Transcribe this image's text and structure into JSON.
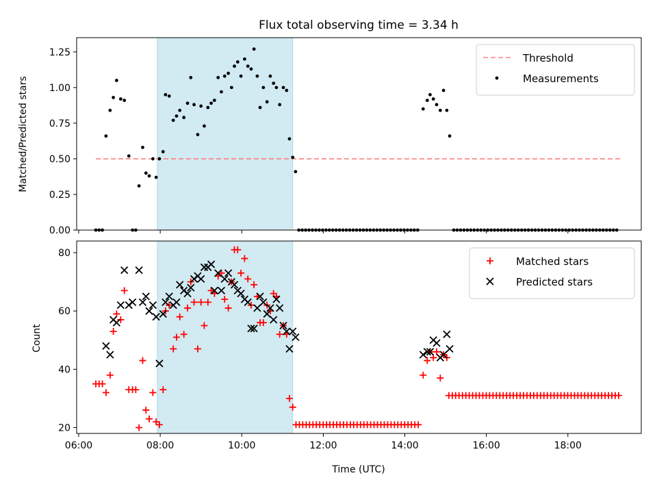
{
  "chart_data": {
    "title": "Flux total observing time = 3.34 h",
    "xlabel": "Time (UTC)",
    "x_ticks": [
      "06:00",
      "08:00",
      "10:00",
      "12:00",
      "14:00",
      "16:00",
      "18:00"
    ],
    "highlight_span_hours": [
      7.93,
      11.25
    ],
    "highlight_color": "#add8e6",
    "panels": [
      {
        "type": "scatter",
        "ylabel": "Matched/Predicted stars",
        "ylim": [
          0,
          1.35
        ],
        "y_ticks": [
          "0.00",
          "0.25",
          "0.50",
          "0.75",
          "1.00",
          "1.25"
        ],
        "y_tick_values": [
          0,
          0.25,
          0.5,
          0.75,
          1.0,
          1.25
        ],
        "legend_position": "top-right",
        "threshold": {
          "name": "Threshold",
          "value": 0.5,
          "x_range_hours": [
            6.42,
            19.28
          ],
          "color": "#ff7f7f"
        },
        "series": [
          {
            "name": "Measurements",
            "marker": "dot",
            "color": "#000000",
            "points": [
              [
                6.42,
                0
              ],
              [
                6.5,
                0
              ],
              [
                6.58,
                0
              ],
              [
                6.67,
                0.66
              ],
              [
                6.77,
                0.84
              ],
              [
                6.85,
                0.93
              ],
              [
                6.93,
                1.05
              ],
              [
                7.03,
                0.92
              ],
              [
                7.12,
                0.91
              ],
              [
                7.23,
                0.52
              ],
              [
                7.32,
                0
              ],
              [
                7.4,
                0
              ],
              [
                7.48,
                0.31
              ],
              [
                7.57,
                0.58
              ],
              [
                7.65,
                0.4
              ],
              [
                7.73,
                0.38
              ],
              [
                7.82,
                0.5
              ],
              [
                7.9,
                0.37
              ],
              [
                7.98,
                0.5
              ],
              [
                8.07,
                0.55
              ],
              [
                8.13,
                0.95
              ],
              [
                8.22,
                0.94
              ],
              [
                8.32,
                0.77
              ],
              [
                8.4,
                0.8
              ],
              [
                8.48,
                0.84
              ],
              [
                8.58,
                0.79
              ],
              [
                8.67,
                0.89
              ],
              [
                8.75,
                1.07
              ],
              [
                8.83,
                0.88
              ],
              [
                8.92,
                0.67
              ],
              [
                9.0,
                0.87
              ],
              [
                9.08,
                0.73
              ],
              [
                9.17,
                0.86
              ],
              [
                9.25,
                0.89
              ],
              [
                9.33,
                0.91
              ],
              [
                9.42,
                1.07
              ],
              [
                9.5,
                0.97
              ],
              [
                9.58,
                1.08
              ],
              [
                9.67,
                1.1
              ],
              [
                9.75,
                1.0
              ],
              [
                9.82,
                1.15
              ],
              [
                9.9,
                1.18
              ],
              [
                9.98,
                1.08
              ],
              [
                10.07,
                1.2
              ],
              [
                10.15,
                1.15
              ],
              [
                10.23,
                1.13
              ],
              [
                10.3,
                1.27
              ],
              [
                10.38,
                1.08
              ],
              [
                10.45,
                0.86
              ],
              [
                10.53,
                1.0
              ],
              [
                10.62,
                0.9
              ],
              [
                10.7,
                1.08
              ],
              [
                10.78,
                1.03
              ],
              [
                10.85,
                1.0
              ],
              [
                10.93,
                0.88
              ],
              [
                11.02,
                1.0
              ],
              [
                11.1,
                0.98
              ],
              [
                11.17,
                0.64
              ],
              [
                11.25,
                0.51
              ],
              [
                11.32,
                0.41
              ],
              [
                14.45,
                0.85
              ],
              [
                14.55,
                0.91
              ],
              [
                14.62,
                0.95
              ],
              [
                14.7,
                0.92
              ],
              [
                14.78,
                0.88
              ],
              [
                14.87,
                0.84
              ],
              [
                14.95,
                0.98
              ],
              [
                15.03,
                0.84
              ],
              [
                15.1,
                0.66
              ]
            ],
            "zero_runs": [
              {
                "x_start": 11.4,
                "x_end": 14.38,
                "step": 0.0833,
                "y": 0
              },
              {
                "x_start": 15.2,
                "x_end": 19.28,
                "step": 0.0833,
                "y": 0
              }
            ]
          }
        ]
      },
      {
        "type": "scatter",
        "ylabel": "Count",
        "ylim": [
          18,
          84
        ],
        "y_ticks": [
          "20",
          "40",
          "60",
          "80"
        ],
        "y_tick_values": [
          20,
          40,
          60,
          80
        ],
        "legend_position": "top-right",
        "series": [
          {
            "name": "Matched stars",
            "marker": "plus",
            "color": "#ff0000",
            "points": [
              [
                6.42,
                35
              ],
              [
                6.5,
                35
              ],
              [
                6.58,
                35
              ],
              [
                6.67,
                32
              ],
              [
                6.77,
                38
              ],
              [
                6.85,
                53
              ],
              [
                6.93,
                59
              ],
              [
                7.03,
                57
              ],
              [
                7.12,
                67
              ],
              [
                7.23,
                33
              ],
              [
                7.32,
                33
              ],
              [
                7.4,
                33
              ],
              [
                7.48,
                20
              ],
              [
                7.57,
                43
              ],
              [
                7.65,
                26
              ],
              [
                7.73,
                23
              ],
              [
                7.82,
                32
              ],
              [
                7.9,
                22
              ],
              [
                7.98,
                21
              ],
              [
                8.07,
                33
              ],
              [
                8.13,
                60
              ],
              [
                8.22,
                62
              ],
              [
                8.32,
                47
              ],
              [
                8.4,
                51
              ],
              [
                8.48,
                58
              ],
              [
                8.58,
                52
              ],
              [
                8.67,
                61
              ],
              [
                8.75,
                70
              ],
              [
                8.83,
                63
              ],
              [
                8.92,
                47
              ],
              [
                9.0,
                63
              ],
              [
                9.08,
                55
              ],
              [
                9.17,
                63
              ],
              [
                9.25,
                67
              ],
              [
                9.33,
                66
              ],
              [
                9.42,
                72
              ],
              [
                9.5,
                73
              ],
              [
                9.58,
                64
              ],
              [
                9.67,
                61
              ],
              [
                9.75,
                70
              ],
              [
                9.82,
                81
              ],
              [
                9.9,
                81
              ],
              [
                9.98,
                73
              ],
              [
                10.07,
                78
              ],
              [
                10.15,
                71
              ],
              [
                10.23,
                62
              ],
              [
                10.3,
                69
              ],
              [
                10.38,
                65
              ],
              [
                10.45,
                56
              ],
              [
                10.53,
                56
              ],
              [
                10.62,
                62
              ],
              [
                10.7,
                60
              ],
              [
                10.78,
                66
              ],
              [
                10.85,
                65
              ],
              [
                10.93,
                52
              ],
              [
                11.02,
                55
              ],
              [
                11.1,
                52
              ],
              [
                11.17,
                30
              ],
              [
                11.25,
                27
              ],
              [
                14.45,
                38
              ],
              [
                14.55,
                43
              ],
              [
                14.62,
                46
              ],
              [
                14.7,
                44
              ],
              [
                14.78,
                46
              ],
              [
                14.87,
                37
              ],
              [
                14.95,
                45
              ],
              [
                15.03,
                44
              ]
            ],
            "runs": [
              {
                "x_start": 11.33,
                "x_end": 14.38,
                "step": 0.0833,
                "y": 21
              },
              {
                "x_start": 15.08,
                "x_end": 19.28,
                "step": 0.0833,
                "y": 31
              }
            ]
          },
          {
            "name": "Predicted stars",
            "marker": "x",
            "color": "#000000",
            "points": [
              [
                6.67,
                48
              ],
              [
                6.77,
                45
              ],
              [
                6.85,
                57
              ],
              [
                6.93,
                56
              ],
              [
                7.03,
                62
              ],
              [
                7.12,
                74
              ],
              [
                7.23,
                62
              ],
              [
                7.32,
                63
              ],
              [
                7.48,
                74
              ],
              [
                7.57,
                63
              ],
              [
                7.65,
                65
              ],
              [
                7.73,
                60
              ],
              [
                7.82,
                62
              ],
              [
                7.9,
                58
              ],
              [
                7.98,
                42
              ],
              [
                8.07,
                59
              ],
              [
                8.13,
                63
              ],
              [
                8.22,
                65
              ],
              [
                8.32,
                62
              ],
              [
                8.4,
                63
              ],
              [
                8.48,
                69
              ],
              [
                8.58,
                67
              ],
              [
                8.67,
                66
              ],
              [
                8.75,
                68
              ],
              [
                8.83,
                71
              ],
              [
                8.92,
                72
              ],
              [
                9.0,
                71
              ],
              [
                9.08,
                75
              ],
              [
                9.17,
                75
              ],
              [
                9.25,
                76
              ],
              [
                9.33,
                67
              ],
              [
                9.42,
                73
              ],
              [
                9.5,
                67
              ],
              [
                9.58,
                71
              ],
              [
                9.67,
                73
              ],
              [
                9.75,
                70
              ],
              [
                9.82,
                69
              ],
              [
                9.9,
                67
              ],
              [
                9.98,
                66
              ],
              [
                10.07,
                64
              ],
              [
                10.15,
                63
              ],
              [
                10.23,
                54
              ],
              [
                10.3,
                54
              ],
              [
                10.38,
                61
              ],
              [
                10.45,
                65
              ],
              [
                10.53,
                63
              ],
              [
                10.62,
                59
              ],
              [
                10.7,
                61
              ],
              [
                10.78,
                57
              ],
              [
                10.85,
                64
              ],
              [
                10.93,
                61
              ],
              [
                11.02,
                55
              ],
              [
                11.1,
                53
              ],
              [
                11.17,
                47
              ],
              [
                11.25,
                53
              ],
              [
                11.32,
                51
              ],
              [
                14.45,
                45
              ],
              [
                14.55,
                46
              ],
              [
                14.62,
                46
              ],
              [
                14.7,
                50
              ],
              [
                14.78,
                49
              ],
              [
                14.87,
                44
              ],
              [
                14.95,
                45
              ],
              [
                15.03,
                52
              ],
              [
                15.1,
                47
              ]
            ]
          }
        ]
      }
    ]
  }
}
